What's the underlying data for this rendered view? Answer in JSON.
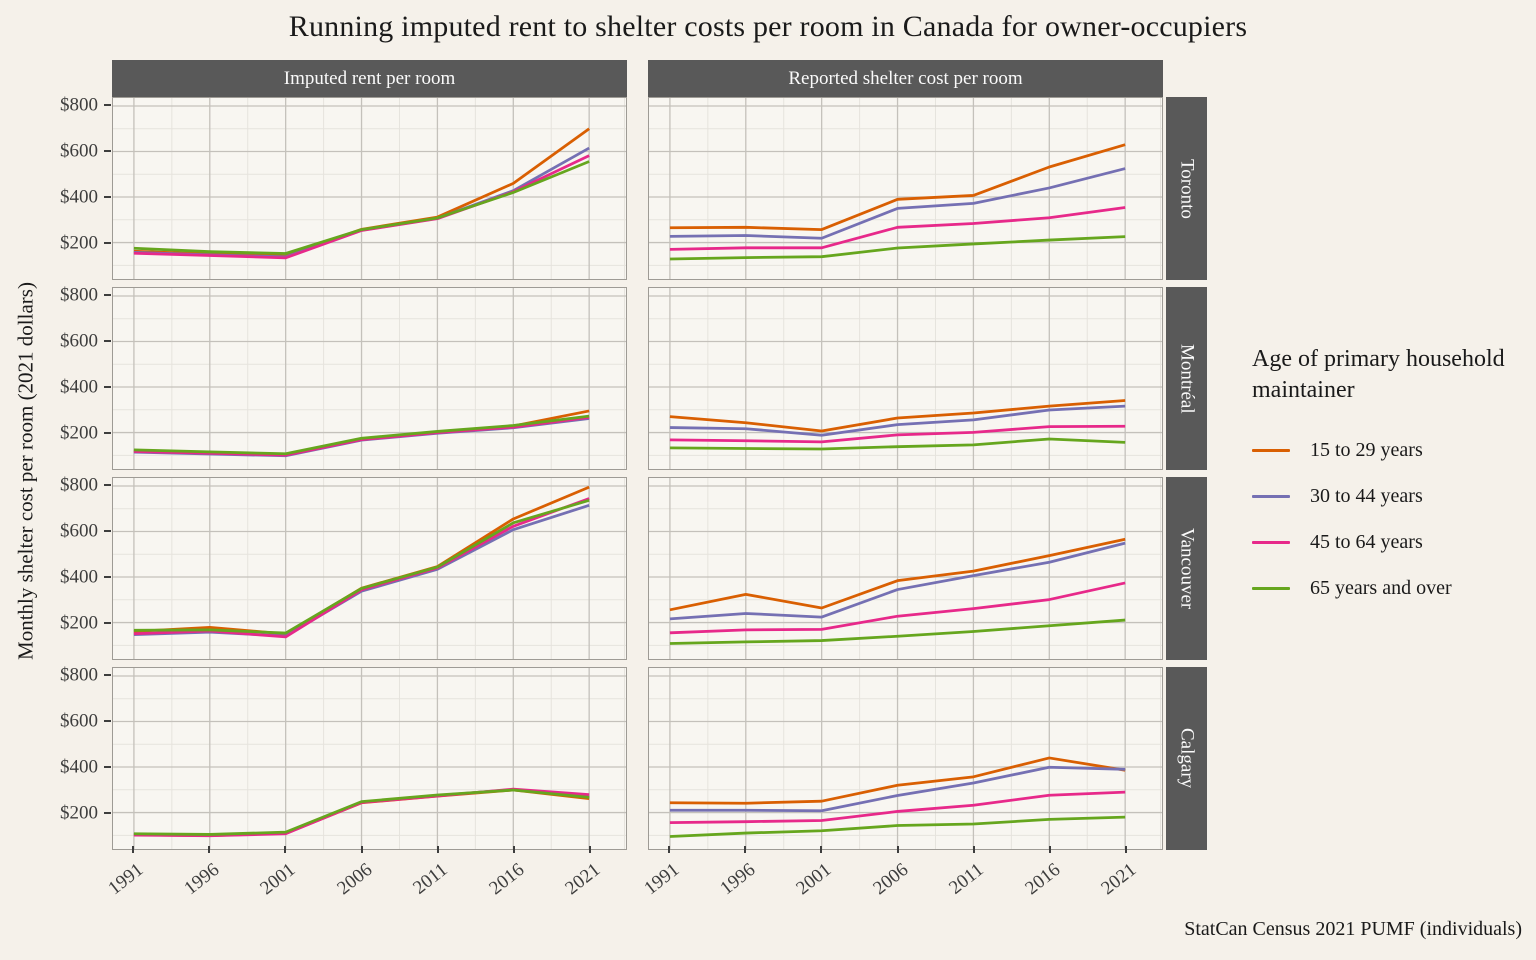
{
  "title": "Running imputed rent to shelter costs per room in Canada for owner-occupiers",
  "y_axis_label": "Monthly shelter cost per room (2021 dollars)",
  "caption": "StatCan Census 2021 PUMF (individuals)",
  "legend": {
    "title": "Age of primary household maintainer"
  },
  "colors": {
    "page_background": "#f5f1ea",
    "panel_background": "#f8f6f1",
    "strip_background": "#595959",
    "strip_text": "#fafafa",
    "grid_major": "#c4c1bb",
    "grid_minor": "#e6e3dd",
    "panel_border": "#9e9b95",
    "axis_text": "#3d3d3d"
  },
  "chart_data": {
    "type": "line",
    "x": [
      1991,
      1996,
      2001,
      2006,
      2011,
      2016,
      2021
    ],
    "x_tick_labels": [
      "1991",
      "1996",
      "2001",
      "2006",
      "2011",
      "2016",
      "2021"
    ],
    "yticks": [
      200,
      400,
      600,
      800
    ],
    "ytick_labels": [
      "$200",
      "$400",
      "$600",
      "$800"
    ],
    "ylim": [
      40,
      835
    ],
    "grid": "on",
    "legend_position": "right",
    "legend_title": "Age of primary household maintainer",
    "facet_cols": [
      "Imputed rent per room",
      "Reported shelter cost per room"
    ],
    "facet_rows": [
      "Toronto",
      "Montréal",
      "Vancouver",
      "Calgary"
    ],
    "series_meta": [
      {
        "name": "15 to 29 years",
        "color": "#d95f02"
      },
      {
        "name": "30 to 44 years",
        "color": "#7570b3"
      },
      {
        "name": "45 to 64 years",
        "color": "#e7298a"
      },
      {
        "name": "65 years and over",
        "color": "#66a61e"
      }
    ],
    "panels": [
      {
        "row": "Toronto",
        "col": "Imputed rent per room",
        "series": {
          "15 to 29 years": [
            162,
            150,
            141,
            258,
            312,
            460,
            700
          ],
          "30 to 44 years": [
            157,
            146,
            137,
            254,
            307,
            428,
            615
          ],
          "45 to 64 years": [
            153,
            143,
            133,
            253,
            305,
            423,
            582
          ],
          "65 years and over": [
            175,
            160,
            152,
            257,
            308,
            420,
            556
          ]
        }
      },
      {
        "row": "Toronto",
        "col": "Reported shelter cost per room",
        "series": {
          "15 to 29 years": [
            265,
            267,
            257,
            390,
            407,
            532,
            630
          ],
          "30 to 44 years": [
            227,
            231,
            219,
            350,
            372,
            440,
            525
          ],
          "45 to 64 years": [
            170,
            177,
            177,
            267,
            284,
            309,
            354
          ],
          "65 years and over": [
            128,
            134,
            138,
            176,
            194,
            211,
            226
          ]
        }
      },
      {
        "row": "Montréal",
        "col": "Imputed rent per room",
        "series": {
          "15 to 29 years": [
            121,
            112,
            104,
            172,
            203,
            229,
            295
          ],
          "30 to 44 years": [
            114,
            106,
            98,
            167,
            197,
            221,
            262
          ],
          "45 to 64 years": [
            117,
            109,
            101,
            169,
            200,
            224,
            267
          ],
          "65 years and over": [
            124,
            115,
            107,
            175,
            205,
            231,
            272
          ]
        }
      },
      {
        "row": "Montréal",
        "col": "Reported shelter cost per room",
        "series": {
          "15 to 29 years": [
            270,
            243,
            207,
            264,
            286,
            316,
            341
          ],
          "30 to 44 years": [
            222,
            217,
            188,
            235,
            256,
            299,
            316
          ],
          "45 to 64 years": [
            168,
            164,
            159,
            190,
            201,
            226,
            228
          ],
          "65 years and over": [
            133,
            130,
            128,
            138,
            146,
            172,
            157
          ]
        }
      },
      {
        "row": "Vancouver",
        "col": "Imputed rent per room",
        "series": {
          "15 to 29 years": [
            161,
            179,
            150,
            351,
            446,
            655,
            795
          ],
          "30 to 44 years": [
            147,
            158,
            141,
            338,
            434,
            608,
            715
          ],
          "45 to 64 years": [
            151,
            163,
            137,
            344,
            440,
            623,
            745
          ],
          "65 years and over": [
            166,
            168,
            154,
            350,
            444,
            638,
            737
          ]
        }
      },
      {
        "row": "Vancouver",
        "col": "Reported shelter cost per room",
        "series": {
          "15 to 29 years": [
            256,
            324,
            264,
            384,
            426,
            494,
            566
          ],
          "30 to 44 years": [
            216,
            240,
            224,
            345,
            406,
            465,
            549
          ],
          "45 to 64 years": [
            155,
            168,
            170,
            228,
            261,
            301,
            374
          ],
          "65 years and over": [
            108,
            115,
            121,
            140,
            161,
            186,
            211
          ]
        }
      },
      {
        "row": "Calgary",
        "col": "Imputed rent per room",
        "series": {
          "15 to 29 years": [
            102,
            99,
            109,
            243,
            272,
            299,
            261
          ],
          "30 to 44 years": [
            104,
            101,
            111,
            246,
            275,
            301,
            269
          ],
          "45 to 64 years": [
            101,
            98,
            107,
            244,
            273,
            303,
            279
          ],
          "65 years and over": [
            107,
            104,
            114,
            248,
            277,
            299,
            267
          ]
        }
      },
      {
        "row": "Calgary",
        "col": "Reported shelter cost per room",
        "series": {
          "15 to 29 years": [
            243,
            241,
            250,
            320,
            357,
            440,
            386
          ],
          "30 to 44 years": [
            210,
            210,
            208,
            275,
            330,
            399,
            390
          ],
          "45 to 64 years": [
            156,
            160,
            165,
            205,
            232,
            276,
            290
          ],
          "65 years and over": [
            95,
            110,
            120,
            143,
            150,
            170,
            180
          ]
        }
      }
    ]
  }
}
